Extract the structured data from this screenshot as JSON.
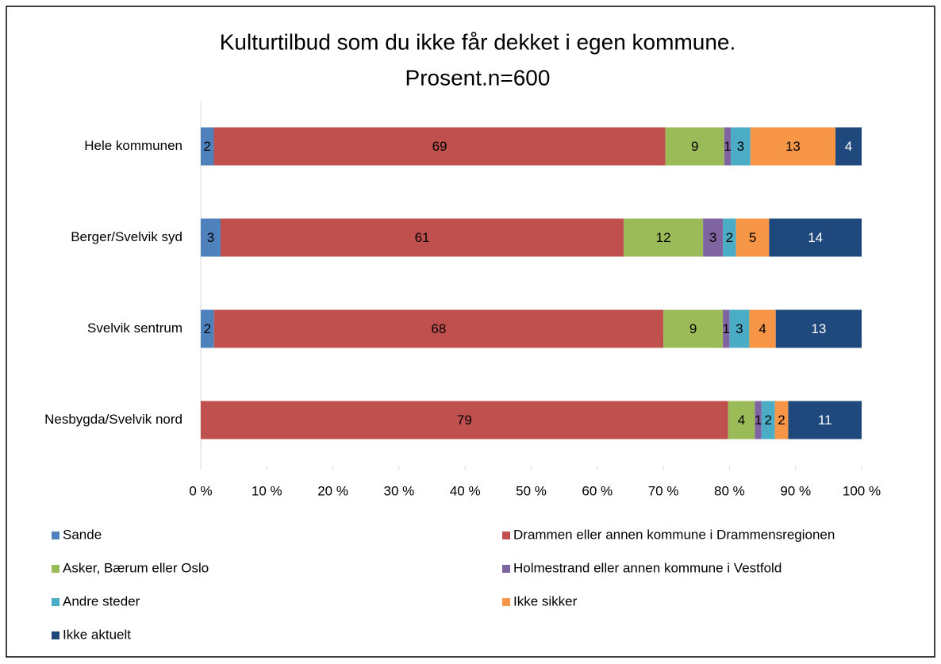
{
  "chart_data": {
    "type": "bar",
    "orientation": "horizontal",
    "stacked": "percent",
    "title": [
      "Kulturtilbud som du ikke får dekket i egen kommune.",
      "Prosent.n=600"
    ],
    "categories": [
      "Hele kommunen",
      "Berger/Svelvik syd",
      "Svelvik sentrum",
      "Nesbygda/Svelvik nord"
    ],
    "series": [
      {
        "name": "Sande",
        "color": "#4f81bd",
        "values": [
          2,
          3,
          2,
          null
        ]
      },
      {
        "name": "Drammen eller annen kommune i Drammensregionen",
        "color": "#c0504d",
        "values": [
          69,
          61,
          68,
          79
        ]
      },
      {
        "name": "Asker, Bærum eller Oslo",
        "color": "#9bbb59",
        "values": [
          9,
          12,
          9,
          4
        ]
      },
      {
        "name": "Holmestrand eller annen kommune i Vestfold",
        "color": "#8064a2",
        "values": [
          1,
          3,
          1,
          1
        ]
      },
      {
        "name": "Andre steder",
        "color": "#4bacc6",
        "values": [
          3,
          2,
          3,
          2
        ]
      },
      {
        "name": "Ikke sikker",
        "color": "#f79646",
        "values": [
          13,
          5,
          4,
          2
        ]
      },
      {
        "name": "Ikke aktuelt",
        "color": "#1f497d",
        "values": [
          4,
          14,
          13,
          11
        ]
      }
    ],
    "xlim": [
      0,
      100
    ],
    "xticks": [
      {
        "value": 0,
        "label": "0 %"
      },
      {
        "value": 10,
        "label": "10 %"
      },
      {
        "value": 20,
        "label": "20 %"
      },
      {
        "value": 30,
        "label": "30 %"
      },
      {
        "value": 40,
        "label": "40 %"
      },
      {
        "value": 50,
        "label": "50 %"
      },
      {
        "value": 60,
        "label": "60 %"
      },
      {
        "value": 70,
        "label": "70 %"
      },
      {
        "value": 80,
        "label": "80 %"
      },
      {
        "value": 90,
        "label": "90 %"
      },
      {
        "value": 100,
        "label": "100 %"
      }
    ],
    "legend": "bottom",
    "grid": false
  }
}
